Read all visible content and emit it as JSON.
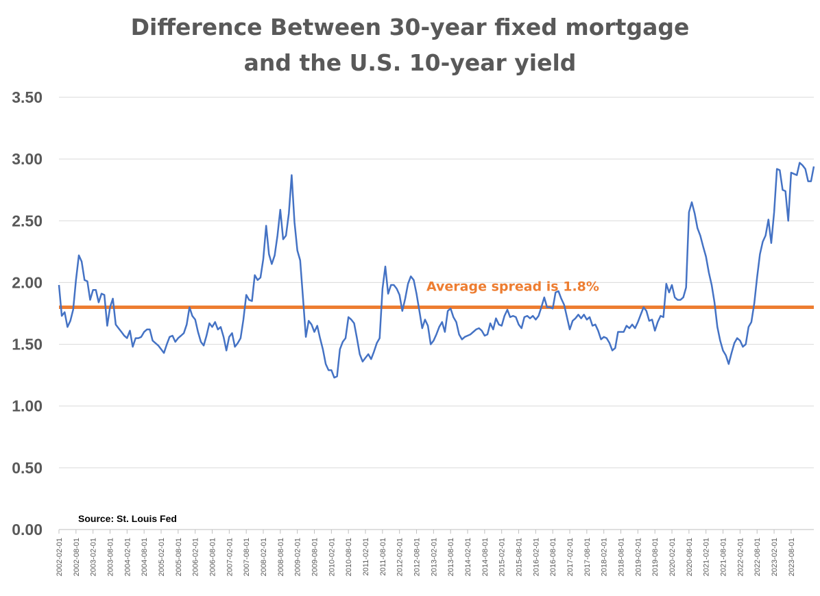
{
  "title_lines": [
    "Difference Between 30-year fixed mortgage",
    "and the U.S. 10-year yield"
  ],
  "source": "Source: St. Louis Fed",
  "colors": {
    "series": "#4472c4",
    "average": "#ed7d31",
    "grid": "#d9d9d9",
    "text": "#595959"
  },
  "chart_data": {
    "type": "line",
    "ylim": [
      0,
      3.5
    ],
    "y_ticks": [
      "0.00",
      "0.50",
      "1.00",
      "1.50",
      "2.00",
      "2.50",
      "3.00",
      "3.50"
    ],
    "x_tick_labels": [
      "2002-02-01",
      "2002-08-01",
      "2003-02-01",
      "2003-08-01",
      "2004-02-01",
      "2004-08-01",
      "2005-02-01",
      "2005-08-01",
      "2006-02-01",
      "2006-08-01",
      "2007-02-01",
      "2007-08-01",
      "2008-02-01",
      "2008-08-01",
      "2009-02-01",
      "2009-08-01",
      "2010-02-01",
      "2010-08-01",
      "2011-02-01",
      "2011-08-01",
      "2012-02-01",
      "2012-08-01",
      "2013-02-01",
      "2013-08-01",
      "2014-02-01",
      "2014-08-01",
      "2015-02-01",
      "2015-08-01",
      "2016-02-01",
      "2016-08-01",
      "2017-02-01",
      "2017-08-01",
      "2018-02-01",
      "2018-08-01",
      "2019-02-01",
      "2019-08-01",
      "2020-02-01",
      "2020-08-01",
      "2021-02-01",
      "2021-08-01",
      "2022-02-01",
      "2022-08-01",
      "2023-02-01",
      "2023-08-01"
    ],
    "grid": true,
    "average_line": {
      "value": 1.8,
      "label": "Average spread is 1.8%"
    },
    "series": [
      {
        "points": [
          [
            "2002-02-01",
            1.98
          ],
          [
            "2002-03-01",
            1.73
          ],
          [
            "2002-04-01",
            1.76
          ],
          [
            "2002-05-01",
            1.64
          ],
          [
            "2002-06-01",
            1.69
          ],
          [
            "2002-07-01",
            1.78
          ],
          [
            "2002-08-01",
            2.02
          ],
          [
            "2002-09-01",
            2.22
          ],
          [
            "2002-10-01",
            2.17
          ],
          [
            "2002-11-01",
            2.02
          ],
          [
            "2002-12-01",
            2.01
          ],
          [
            "2003-01-01",
            1.86
          ],
          [
            "2003-02-01",
            1.94
          ],
          [
            "2003-03-01",
            1.94
          ],
          [
            "2003-04-01",
            1.84
          ],
          [
            "2003-05-01",
            1.91
          ],
          [
            "2003-06-01",
            1.9
          ],
          [
            "2003-07-01",
            1.65
          ],
          [
            "2003-08-01",
            1.8
          ],
          [
            "2003-09-01",
            1.87
          ],
          [
            "2003-10-01",
            1.66
          ],
          [
            "2003-11-01",
            1.63
          ],
          [
            "2003-12-01",
            1.6
          ],
          [
            "2004-01-01",
            1.57
          ],
          [
            "2004-02-01",
            1.55
          ],
          [
            "2004-03-01",
            1.61
          ],
          [
            "2004-04-01",
            1.48
          ],
          [
            "2004-05-01",
            1.55
          ],
          [
            "2004-06-01",
            1.55
          ],
          [
            "2004-07-01",
            1.56
          ],
          [
            "2004-08-01",
            1.6
          ],
          [
            "2004-09-01",
            1.62
          ],
          [
            "2004-10-01",
            1.62
          ],
          [
            "2004-11-01",
            1.53
          ],
          [
            "2004-12-01",
            1.51
          ],
          [
            "2005-01-01",
            1.49
          ],
          [
            "2005-02-01",
            1.46
          ],
          [
            "2005-03-01",
            1.43
          ],
          [
            "2005-04-01",
            1.5
          ],
          [
            "2005-05-01",
            1.56
          ],
          [
            "2005-06-01",
            1.57
          ],
          [
            "2005-07-01",
            1.52
          ],
          [
            "2005-08-01",
            1.55
          ],
          [
            "2005-09-01",
            1.57
          ],
          [
            "2005-10-01",
            1.59
          ],
          [
            "2005-11-01",
            1.66
          ],
          [
            "2005-12-01",
            1.8
          ],
          [
            "2006-01-01",
            1.73
          ],
          [
            "2006-02-01",
            1.7
          ],
          [
            "2006-03-01",
            1.6
          ],
          [
            "2006-04-01",
            1.52
          ],
          [
            "2006-05-01",
            1.49
          ],
          [
            "2006-06-01",
            1.57
          ],
          [
            "2006-07-01",
            1.67
          ],
          [
            "2006-08-01",
            1.64
          ],
          [
            "2006-09-01",
            1.68
          ],
          [
            "2006-10-01",
            1.62
          ],
          [
            "2006-11-01",
            1.64
          ],
          [
            "2006-12-01",
            1.56
          ],
          [
            "2007-01-01",
            1.45
          ],
          [
            "2007-02-01",
            1.56
          ],
          [
            "2007-03-01",
            1.59
          ],
          [
            "2007-04-01",
            1.48
          ],
          [
            "2007-05-01",
            1.51
          ],
          [
            "2007-06-01",
            1.55
          ],
          [
            "2007-07-01",
            1.7
          ],
          [
            "2007-08-01",
            1.9
          ],
          [
            "2007-09-01",
            1.86
          ],
          [
            "2007-10-01",
            1.85
          ],
          [
            "2007-11-01",
            2.06
          ],
          [
            "2007-12-01",
            2.02
          ],
          [
            "2008-01-01",
            2.04
          ],
          [
            "2008-02-01",
            2.19
          ],
          [
            "2008-03-01",
            2.46
          ],
          [
            "2008-04-01",
            2.23
          ],
          [
            "2008-05-01",
            2.15
          ],
          [
            "2008-06-01",
            2.22
          ],
          [
            "2008-07-01",
            2.38
          ],
          [
            "2008-08-01",
            2.59
          ],
          [
            "2008-09-01",
            2.35
          ],
          [
            "2008-10-01",
            2.38
          ],
          [
            "2008-11-01",
            2.56
          ],
          [
            "2008-12-01",
            2.87
          ],
          [
            "2009-01-01",
            2.49
          ],
          [
            "2009-02-01",
            2.26
          ],
          [
            "2009-03-01",
            2.18
          ],
          [
            "2009-04-01",
            1.87
          ],
          [
            "2009-05-01",
            1.56
          ],
          [
            "2009-06-01",
            1.69
          ],
          [
            "2009-07-01",
            1.66
          ],
          [
            "2009-08-01",
            1.6
          ],
          [
            "2009-09-01",
            1.65
          ],
          [
            "2009-10-01",
            1.55
          ],
          [
            "2009-11-01",
            1.46
          ],
          [
            "2009-12-01",
            1.34
          ],
          [
            "2010-01-01",
            1.29
          ],
          [
            "2010-02-01",
            1.29
          ],
          [
            "2010-03-01",
            1.23
          ],
          [
            "2010-04-01",
            1.24
          ],
          [
            "2010-05-01",
            1.46
          ],
          [
            "2010-06-01",
            1.52
          ],
          [
            "2010-07-01",
            1.55
          ],
          [
            "2010-08-01",
            1.72
          ],
          [
            "2010-09-01",
            1.7
          ],
          [
            "2010-10-01",
            1.67
          ],
          [
            "2010-11-01",
            1.55
          ],
          [
            "2010-12-01",
            1.42
          ],
          [
            "2011-01-01",
            1.36
          ],
          [
            "2011-02-01",
            1.39
          ],
          [
            "2011-03-01",
            1.42
          ],
          [
            "2011-04-01",
            1.38
          ],
          [
            "2011-05-01",
            1.44
          ],
          [
            "2011-06-01",
            1.51
          ],
          [
            "2011-07-01",
            1.55
          ],
          [
            "2011-08-01",
            1.95
          ],
          [
            "2011-09-01",
            2.13
          ],
          [
            "2011-10-01",
            1.91
          ],
          [
            "2011-11-01",
            1.98
          ],
          [
            "2011-12-01",
            1.98
          ],
          [
            "2012-01-01",
            1.95
          ],
          [
            "2012-02-01",
            1.9
          ],
          [
            "2012-03-01",
            1.77
          ],
          [
            "2012-04-01",
            1.87
          ],
          [
            "2012-05-01",
            1.99
          ],
          [
            "2012-06-01",
            2.05
          ],
          [
            "2012-07-01",
            2.02
          ],
          [
            "2012-08-01",
            1.91
          ],
          [
            "2012-09-01",
            1.77
          ],
          [
            "2012-10-01",
            1.63
          ],
          [
            "2012-11-01",
            1.7
          ],
          [
            "2012-12-01",
            1.65
          ],
          [
            "2013-01-01",
            1.5
          ],
          [
            "2013-02-01",
            1.53
          ],
          [
            "2013-03-01",
            1.58
          ],
          [
            "2013-04-01",
            1.64
          ],
          [
            "2013-05-01",
            1.68
          ],
          [
            "2013-06-01",
            1.6
          ],
          [
            "2013-07-01",
            1.77
          ],
          [
            "2013-08-01",
            1.79
          ],
          [
            "2013-09-01",
            1.72
          ],
          [
            "2013-10-01",
            1.68
          ],
          [
            "2013-11-01",
            1.58
          ],
          [
            "2013-12-01",
            1.54
          ],
          [
            "2014-01-01",
            1.56
          ],
          [
            "2014-02-01",
            1.57
          ],
          [
            "2014-03-01",
            1.58
          ],
          [
            "2014-04-01",
            1.6
          ],
          [
            "2014-05-01",
            1.62
          ],
          [
            "2014-06-01",
            1.63
          ],
          [
            "2014-07-01",
            1.61
          ],
          [
            "2014-08-01",
            1.57
          ],
          [
            "2014-09-01",
            1.58
          ],
          [
            "2014-10-01",
            1.67
          ],
          [
            "2014-11-01",
            1.62
          ],
          [
            "2014-12-01",
            1.71
          ],
          [
            "2015-01-01",
            1.66
          ],
          [
            "2015-02-01",
            1.65
          ],
          [
            "2015-03-01",
            1.73
          ],
          [
            "2015-04-01",
            1.78
          ],
          [
            "2015-05-01",
            1.72
          ],
          [
            "2015-06-01",
            1.73
          ],
          [
            "2015-07-01",
            1.72
          ],
          [
            "2015-08-01",
            1.66
          ],
          [
            "2015-09-01",
            1.63
          ],
          [
            "2015-10-01",
            1.72
          ],
          [
            "2015-11-01",
            1.73
          ],
          [
            "2015-12-01",
            1.71
          ],
          [
            "2016-01-01",
            1.73
          ],
          [
            "2016-02-01",
            1.7
          ],
          [
            "2016-03-01",
            1.73
          ],
          [
            "2016-04-01",
            1.8
          ],
          [
            "2016-05-01",
            1.88
          ],
          [
            "2016-06-01",
            1.8
          ],
          [
            "2016-07-01",
            1.8
          ],
          [
            "2016-08-01",
            1.79
          ],
          [
            "2016-09-01",
            1.92
          ],
          [
            "2016-10-01",
            1.93
          ],
          [
            "2016-11-01",
            1.87
          ],
          [
            "2016-12-01",
            1.82
          ],
          [
            "2017-01-01",
            1.72
          ],
          [
            "2017-02-01",
            1.62
          ],
          [
            "2017-03-01",
            1.69
          ],
          [
            "2017-04-01",
            1.71
          ],
          [
            "2017-05-01",
            1.74
          ],
          [
            "2017-06-01",
            1.71
          ],
          [
            "2017-07-01",
            1.74
          ],
          [
            "2017-08-01",
            1.7
          ],
          [
            "2017-09-01",
            1.72
          ],
          [
            "2017-10-01",
            1.65
          ],
          [
            "2017-11-01",
            1.66
          ],
          [
            "2017-12-01",
            1.61
          ],
          [
            "2018-01-01",
            1.54
          ],
          [
            "2018-02-01",
            1.56
          ],
          [
            "2018-03-01",
            1.55
          ],
          [
            "2018-04-01",
            1.51
          ],
          [
            "2018-05-01",
            1.45
          ],
          [
            "2018-06-01",
            1.47
          ],
          [
            "2018-07-01",
            1.6
          ],
          [
            "2018-08-01",
            1.6
          ],
          [
            "2018-09-01",
            1.6
          ],
          [
            "2018-10-01",
            1.65
          ],
          [
            "2018-11-01",
            1.63
          ],
          [
            "2018-12-01",
            1.66
          ],
          [
            "2019-01-01",
            1.63
          ],
          [
            "2019-02-01",
            1.68
          ],
          [
            "2019-03-01",
            1.74
          ],
          [
            "2019-04-01",
            1.8
          ],
          [
            "2019-05-01",
            1.77
          ],
          [
            "2019-06-01",
            1.69
          ],
          [
            "2019-07-01",
            1.7
          ],
          [
            "2019-08-01",
            1.61
          ],
          [
            "2019-09-01",
            1.68
          ],
          [
            "2019-10-01",
            1.73
          ],
          [
            "2019-11-01",
            1.72
          ],
          [
            "2019-12-01",
            1.99
          ],
          [
            "2020-01-01",
            1.92
          ],
          [
            "2020-02-01",
            1.98
          ],
          [
            "2020-03-01",
            1.88
          ],
          [
            "2020-04-01",
            1.86
          ],
          [
            "2020-05-01",
            1.86
          ],
          [
            "2020-06-01",
            1.88
          ],
          [
            "2020-07-01",
            1.96
          ],
          [
            "2020-08-01",
            2.57
          ],
          [
            "2020-09-01",
            2.65
          ],
          [
            "2020-10-01",
            2.56
          ],
          [
            "2020-11-01",
            2.44
          ],
          [
            "2020-12-01",
            2.38
          ],
          [
            "2021-01-01",
            2.29
          ],
          [
            "2021-02-01",
            2.21
          ],
          [
            "2021-03-01",
            2.08
          ],
          [
            "2021-04-01",
            1.98
          ],
          [
            "2021-05-01",
            1.84
          ],
          [
            "2021-06-01",
            1.64
          ],
          [
            "2021-07-01",
            1.53
          ],
          [
            "2021-08-01",
            1.45
          ],
          [
            "2021-09-01",
            1.41
          ],
          [
            "2021-10-01",
            1.34
          ],
          [
            "2021-11-01",
            1.43
          ],
          [
            "2021-12-01",
            1.51
          ],
          [
            "2022-01-01",
            1.55
          ],
          [
            "2022-02-01",
            1.53
          ],
          [
            "2022-03-01",
            1.48
          ],
          [
            "2022-04-01",
            1.5
          ],
          [
            "2022-05-01",
            1.64
          ],
          [
            "2022-06-01",
            1.68
          ],
          [
            "2022-07-01",
            1.83
          ],
          [
            "2022-08-01",
            2.04
          ],
          [
            "2022-09-01",
            2.23
          ],
          [
            "2022-10-01",
            2.33
          ],
          [
            "2022-11-01",
            2.38
          ],
          [
            "2022-12-01",
            2.51
          ],
          [
            "2023-01-01",
            2.32
          ],
          [
            "2023-02-01",
            2.57
          ],
          [
            "2023-03-01",
            2.92
          ],
          [
            "2023-04-01",
            2.91
          ],
          [
            "2023-05-01",
            2.75
          ],
          [
            "2023-06-01",
            2.74
          ],
          [
            "2023-07-01",
            2.5
          ],
          [
            "2023-08-01",
            2.89
          ],
          [
            "2023-09-01",
            2.88
          ],
          [
            "2023-10-01",
            2.87
          ],
          [
            "2023-11-01",
            2.97
          ],
          [
            "2023-12-01",
            2.95
          ],
          [
            "2024-01-01",
            2.92
          ],
          [
            "2024-02-01",
            2.82
          ],
          [
            "2024-03-01",
            2.82
          ],
          [
            "2024-04-01",
            2.94
          ]
        ]
      }
    ]
  }
}
